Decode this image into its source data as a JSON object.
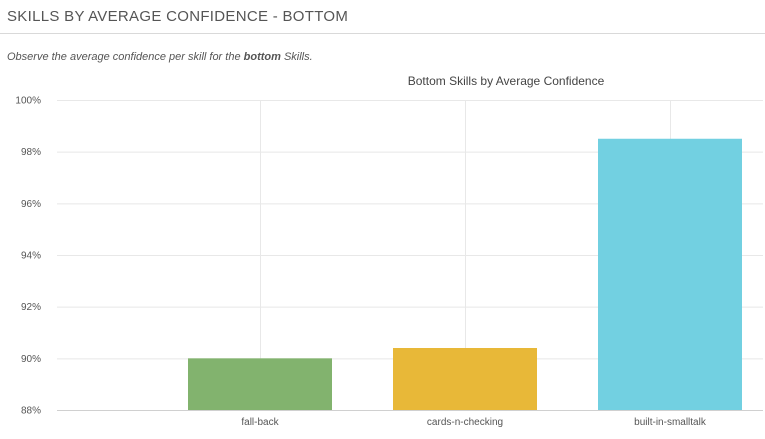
{
  "panel": {
    "title": "SKILLS BY AVERAGE CONFIDENCE - BOTTOM",
    "description_prefix": "Observe the average confidence per skill for the ",
    "description_bold": "bottom",
    "description_suffix": " Skills."
  },
  "chart_data": {
    "type": "bar",
    "title": "Bottom Skills by Average Confidence",
    "xlabel": "",
    "ylabel": "",
    "categories": [
      "fall-back",
      "cards-n-checking",
      "built-in-smalltalk"
    ],
    "values": [
      90.0,
      90.4,
      98.5
    ],
    "colors": [
      "#82b36e",
      "#e8b838",
      "#72d0e1"
    ],
    "ylim": [
      88,
      100
    ],
    "yticks": [
      88,
      90,
      92,
      94,
      96,
      98,
      100
    ],
    "ytick_labels": [
      "88%",
      "90%",
      "92%",
      "94%",
      "96%",
      "98%",
      "100%"
    ],
    "grid": true,
    "legend": "none"
  }
}
